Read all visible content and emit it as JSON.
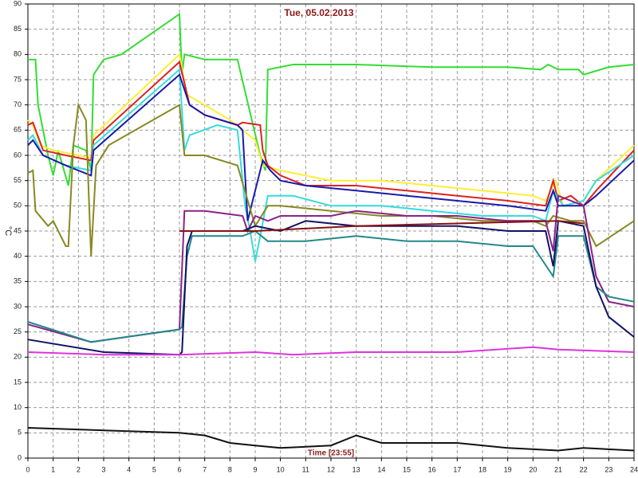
{
  "chart_data": {
    "type": "line",
    "title": "Tue, 05.02.2013",
    "x_label": "Time [23:55]",
    "y_label": "°C",
    "xlim": [
      0,
      24
    ],
    "ylim": [
      0,
      90
    ],
    "xticks": [
      0,
      1,
      2,
      3,
      4,
      5,
      6,
      7,
      8,
      9,
      10,
      11,
      12,
      13,
      14,
      15,
      16,
      17,
      18,
      19,
      20,
      21,
      22,
      23,
      24
    ],
    "yticks": [
      0,
      5,
      10,
      15,
      20,
      25,
      30,
      35,
      40,
      45,
      50,
      55,
      60,
      65,
      70,
      75,
      80,
      85,
      90
    ],
    "grid": true,
    "series": [
      {
        "color": "#33dd33",
        "x": [
          0,
          0.3,
          0.4,
          0.8,
          1.0,
          1.2,
          1.6,
          1.8,
          2.3,
          2.5,
          2.6,
          3,
          3.7,
          6.0,
          6.1,
          6.2,
          7,
          8.3,
          9.2,
          9.4,
          9.5,
          10.5,
          13,
          16,
          19,
          20.3,
          20.6,
          21,
          21.8,
          22,
          23,
          24
        ],
        "values": [
          79,
          79,
          70,
          60,
          56,
          61,
          54,
          62,
          61,
          57,
          76,
          79,
          80,
          88,
          76,
          80,
          79,
          79,
          60,
          57,
          77,
          78,
          78,
          77.5,
          77.5,
          77,
          78,
          77,
          77,
          76,
          77.5,
          78
        ]
      },
      {
        "color": "#ffee33",
        "x": [
          0,
          0.2,
          0.5,
          1,
          2,
          2.5,
          2.6,
          6,
          6.3,
          7,
          8,
          9,
          9.3,
          10,
          12,
          14,
          16,
          18,
          20,
          20.5,
          20.9,
          21.2,
          22,
          22.5,
          24
        ],
        "values": [
          67,
          66,
          62,
          61,
          60,
          59.5,
          64,
          80,
          72,
          70,
          67,
          63,
          58,
          57,
          55,
          55,
          54,
          53,
          52,
          51,
          55,
          50,
          51,
          55,
          62
        ]
      },
      {
        "color": "#dd2222",
        "x": [
          0,
          0.2,
          0.6,
          1.5,
          2.5,
          2.6,
          6,
          6.4,
          7,
          8.3,
          8.5,
          9.2,
          9.3,
          9.5,
          10,
          11,
          13,
          15,
          17,
          19,
          20.5,
          20.8,
          21,
          21.5,
          22,
          22.5,
          24
        ],
        "values": [
          66,
          66.5,
          61,
          60,
          59,
          63,
          78.5,
          70,
          68,
          66,
          66.5,
          66,
          61,
          58,
          56,
          54,
          54,
          53,
          52,
          51,
          50,
          55,
          51,
          52,
          50,
          53,
          61
        ]
      },
      {
        "color": "#33dddd",
        "x": [
          0,
          0.2,
          0.6,
          1.5,
          2.5,
          2.6,
          6,
          6.2,
          6.4,
          7.5,
          8.3,
          8.6,
          8.8,
          9.0,
          9.2,
          9.5,
          10.5,
          12,
          14,
          16,
          18,
          20,
          20.5,
          20.8,
          21.2,
          22,
          22.5,
          24
        ],
        "values": [
          63,
          64,
          60,
          58,
          57,
          62,
          77,
          61,
          64,
          66,
          65,
          50,
          45,
          39,
          44,
          52,
          52,
          50,
          50,
          49,
          48,
          48,
          47,
          53,
          50,
          51,
          55,
          60
        ]
      },
      {
        "color": "#1a1aaa",
        "x": [
          0,
          0.2,
          0.6,
          1.5,
          2.5,
          2.6,
          6,
          6.4,
          7,
          8.3,
          8.5,
          8.7,
          9.3,
          9.6,
          10,
          11,
          13,
          15,
          17,
          19,
          20.5,
          20.8,
          21,
          22,
          22.5,
          24
        ],
        "values": [
          62,
          63,
          60,
          58,
          56,
          61,
          76,
          70,
          68,
          66,
          65,
          47,
          59,
          57,
          55,
          54,
          53,
          52,
          51,
          50,
          49,
          53,
          50,
          50,
          52,
          59
        ]
      },
      {
        "color": "#888822",
        "x": [
          0,
          0.2,
          0.3,
          0.8,
          1,
          1.5,
          1.6,
          1.8,
          2,
          2.3,
          2.5,
          2.7,
          3.2,
          6,
          6.2,
          7,
          8.3,
          9,
          9.5,
          10,
          12,
          14,
          16,
          18,
          20,
          20.5,
          20.8,
          21.5,
          22,
          22.5,
          24
        ],
        "values": [
          56.5,
          57,
          49,
          46,
          47,
          42,
          42,
          62,
          70,
          67,
          40,
          58,
          62,
          70,
          60,
          60,
          58,
          46,
          50,
          50,
          49,
          48,
          48,
          47,
          47,
          46,
          48,
          47,
          47,
          42,
          47
        ]
      },
      {
        "color": "#882288",
        "x": [
          0,
          2.5,
          6,
          6.2,
          7,
          8.5,
          8.7,
          9,
          9.5,
          10,
          12,
          13,
          15,
          17,
          19,
          20.5,
          20.8,
          21,
          22,
          22.5,
          23,
          24
        ],
        "values": [
          26.5,
          23,
          25.5,
          49,
          49,
          48,
          45,
          48,
          47,
          48,
          48,
          49,
          48,
          48,
          47,
          47,
          41,
          52,
          50,
          36,
          31,
          30
        ]
      },
      {
        "color": "#228888",
        "x": [
          0,
          2.5,
          6,
          6.1,
          6.3,
          6.5,
          8.5,
          9,
          9.5,
          11,
          13,
          15,
          17,
          19,
          20,
          20.8,
          21,
          22,
          22.5,
          23,
          24
        ],
        "values": [
          27,
          23,
          25.5,
          26,
          40,
          44,
          44,
          45,
          43,
          43,
          44,
          43,
          43,
          42,
          42,
          36,
          44,
          44,
          34,
          32,
          31
        ]
      },
      {
        "color": "#111166",
        "x": [
          0,
          3,
          6,
          6.1,
          6.3,
          6.5,
          8.5,
          9,
          10,
          11,
          13,
          15,
          17,
          19,
          20.5,
          20.8,
          21,
          22,
          22.5,
          23,
          24
        ],
        "values": [
          23.5,
          21,
          20.5,
          21,
          42,
          45,
          45,
          46,
          45,
          47,
          46,
          46,
          46,
          45,
          45,
          38,
          47,
          46,
          34,
          28,
          24
        ]
      },
      {
        "color": "#881111",
        "x": [
          6,
          9,
          13,
          17,
          21,
          22
        ],
        "values": [
          45,
          45,
          46,
          46.5,
          47,
          46.5
        ]
      },
      {
        "color": "#dd33dd",
        "x": [
          0,
          3,
          6,
          9,
          10.5,
          13,
          17,
          20,
          21,
          24
        ],
        "values": [
          21,
          20.5,
          20.5,
          21,
          20.5,
          21,
          21,
          22,
          21.5,
          21
        ]
      },
      {
        "color": "#111111",
        "x": [
          0,
          3,
          6,
          7,
          8,
          9,
          10,
          12,
          13,
          14,
          17,
          19,
          21,
          22,
          24
        ],
        "values": [
          6,
          5.5,
          5,
          4.5,
          3,
          2.5,
          2,
          2.5,
          4.5,
          3,
          3,
          2,
          1.5,
          2,
          1.5
        ]
      }
    ]
  }
}
